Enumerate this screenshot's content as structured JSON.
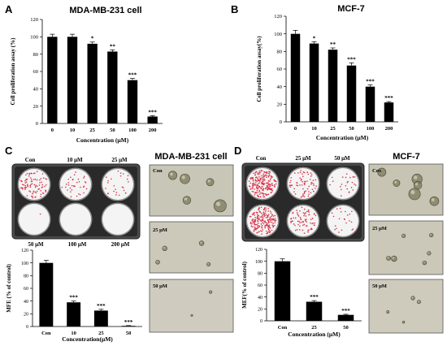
{
  "panels": {
    "A": {
      "letter": "A"
    },
    "B": {
      "letter": "B"
    },
    "C": {
      "letter": "C",
      "plate_labels_top": [
        "Con",
        "10 μM",
        "25 μM"
      ],
      "plate_labels_bottom": [
        "50 μM",
        "100 μM",
        "200 μM"
      ],
      "image_title": "MDA-MB-231 cell",
      "micro_labels": [
        "Con",
        "25 μM",
        "50 μM"
      ]
    },
    "D": {
      "letter": "D",
      "plate_labels_top": [
        "Con",
        "25 μM",
        "50 μM"
      ],
      "image_title": "MCF-7",
      "micro_labels": [
        "Con",
        "25 μM",
        "50 μM"
      ]
    }
  },
  "colors": {
    "bar": "#000000",
    "colony": "#d8344a",
    "plate_bg": "#3a3a3a",
    "micro_bg": "#c9c7b8"
  },
  "chart_data": [
    {
      "id": "A",
      "type": "bar",
      "title": "MDA-MB-231 cell",
      "xlabel": "Concentration (μM)",
      "ylabel": "Cell proliferation assay (%)",
      "categories": [
        "0",
        "10",
        "25",
        "50",
        "100",
        "200"
      ],
      "values": [
        100,
        100,
        92,
        83,
        50,
        8
      ],
      "errors": [
        3,
        3,
        2,
        2,
        2,
        1
      ],
      "annotations": [
        "",
        "",
        "*",
        "**",
        "***",
        "***"
      ],
      "ylim": [
        0,
        120
      ],
      "yticks": [
        0,
        20,
        40,
        60,
        80,
        100,
        120
      ]
    },
    {
      "id": "B",
      "type": "bar",
      "title": "MCF-7",
      "xlabel": "Concentration (μM)",
      "ylabel": "Cell proliferation assay(%)",
      "categories": [
        "0",
        "10",
        "25",
        "50",
        "100",
        "200"
      ],
      "values": [
        100,
        89,
        82,
        64,
        40,
        22
      ],
      "errors": [
        4,
        2,
        2,
        3,
        2,
        1
      ],
      "annotations": [
        "",
        "*",
        "**",
        "***",
        "***",
        "***"
      ],
      "ylim": [
        0,
        120
      ],
      "yticks": [
        0,
        20,
        40,
        60,
        80,
        100,
        120
      ]
    },
    {
      "id": "C",
      "type": "bar",
      "title": "",
      "xlabel": "Concentration(μM)",
      "ylabel": "MFE (% of control)",
      "categories": [
        "Con",
        "10",
        "25",
        "50"
      ],
      "values": [
        100,
        38,
        25,
        1
      ],
      "errors": [
        4,
        2,
        2,
        0.5
      ],
      "annotations": [
        "",
        "***",
        "***",
        "***"
      ],
      "ylim": [
        0,
        120
      ],
      "yticks": [
        0,
        20,
        40,
        60,
        80,
        100,
        120
      ]
    },
    {
      "id": "D",
      "type": "bar",
      "title": "",
      "xlabel": "Concentration (μM)",
      "ylabel": "MEF(% of control)",
      "categories": [
        "Con",
        "25",
        "50"
      ],
      "values": [
        100,
        32,
        10
      ],
      "errors": [
        4,
        2,
        1
      ],
      "annotations": [
        "",
        "***",
        "***"
      ],
      "ylim": [
        0,
        120
      ],
      "yticks": [
        0,
        20,
        40,
        60,
        80,
        100,
        120
      ]
    }
  ]
}
